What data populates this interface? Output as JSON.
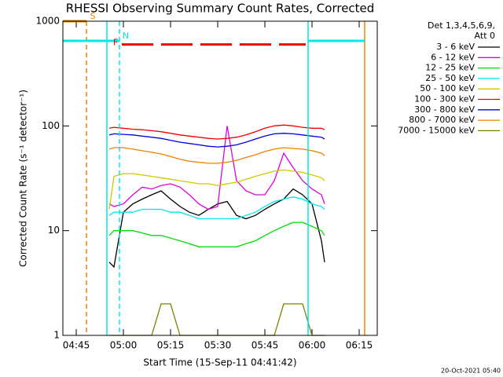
{
  "chart_data": {
    "type": "line",
    "title": "RHESSI Observing Summary Count Rates, Corrected",
    "x_label": "Start Time (15-Sep-11 04:41:42)",
    "y_label": "Corrected Count Rate (s⁻¹ detector⁻¹)",
    "legend_title": [
      "Det 1,3,4,5,6,9,",
      "Att 0"
    ],
    "footer": "20-Oct-2021 05:40",
    "log_y": true,
    "xlim": [
      280.75,
      380.75
    ],
    "xticks": [
      {
        "value": 285,
        "label": "04:45"
      },
      {
        "value": 300,
        "label": "05:00"
      },
      {
        "value": 315,
        "label": "05:15"
      },
      {
        "value": 330,
        "label": "05:30"
      },
      {
        "value": 345,
        "label": "05:45"
      },
      {
        "value": 360,
        "label": "06:00"
      },
      {
        "value": 375,
        "label": "06:15"
      }
    ],
    "ylim": [
      1,
      1000
    ],
    "yticks": [
      1,
      10,
      100,
      1000
    ],
    "x": [
      295.5,
      297,
      300,
      303,
      306,
      309,
      312,
      315,
      318,
      321,
      324,
      327,
      330,
      333,
      336,
      339,
      342,
      345,
      348,
      351,
      354,
      357,
      360,
      363,
      364
    ],
    "series": [
      {
        "name": "3 - 6 keV",
        "color": "#000000",
        "values": [
          5,
          4.5,
          15,
          18,
          20,
          22,
          24,
          20,
          17,
          15,
          14,
          16,
          18,
          19,
          14,
          13,
          14,
          16,
          18,
          20,
          25,
          22,
          18,
          8,
          5
        ]
      },
      {
        "name": "6 - 12 keV",
        "color": "#e000e0",
        "values": [
          18,
          17,
          18,
          22,
          26,
          25,
          27,
          28,
          26,
          22,
          18,
          16,
          17,
          100,
          30,
          24,
          22,
          22,
          30,
          55,
          40,
          30,
          25,
          22,
          18
        ]
      },
      {
        "name": "12 - 25 keV",
        "color": "#00e000",
        "values": [
          9,
          10,
          10,
          10,
          9.5,
          9,
          9,
          8.5,
          8,
          7.5,
          7,
          7,
          7,
          7,
          7,
          7.5,
          8,
          9,
          10,
          11,
          12,
          12,
          11,
          10,
          9
        ]
      },
      {
        "name": "25 - 50 keV",
        "color": "#00e8e8",
        "values": [
          14,
          15,
          15,
          15,
          16,
          16,
          16,
          15,
          15,
          14,
          13,
          13,
          13,
          13,
          13,
          14,
          15,
          17,
          19,
          20,
          21,
          20,
          18,
          17,
          16
        ]
      },
      {
        "name": "50 - 100 keV",
        "color": "#d0c800",
        "values": [
          16,
          33,
          35,
          35,
          34,
          33,
          32,
          31,
          30,
          29,
          28,
          28,
          27,
          28,
          29,
          31,
          33,
          35,
          37,
          38,
          37,
          36,
          34,
          32,
          30
        ]
      },
      {
        "name": "100 - 300 keV",
        "color": "#f00000",
        "values": [
          95,
          97,
          95,
          93,
          92,
          90,
          88,
          85,
          82,
          80,
          78,
          76,
          75,
          76,
          78,
          82,
          88,
          95,
          100,
          102,
          100,
          97,
          95,
          95,
          92
        ]
      },
      {
        "name": "300 - 800 keV",
        "color": "#0000e0",
        "values": [
          82,
          84,
          83,
          82,
          80,
          78,
          76,
          73,
          70,
          68,
          66,
          64,
          63,
          64,
          66,
          70,
          75,
          80,
          84,
          85,
          84,
          82,
          80,
          78,
          75
        ]
      },
      {
        "name": "800 - 7000 keV",
        "color": "#f08000",
        "values": [
          60,
          62,
          62,
          60,
          58,
          56,
          54,
          51,
          48,
          46,
          45,
          44,
          44,
          45,
          47,
          50,
          53,
          57,
          60,
          62,
          61,
          60,
          58,
          55,
          52
        ]
      },
      {
        "name": "7000 - 15000 keV",
        "color": "#808000",
        "values": [
          1,
          1,
          1,
          1,
          1,
          1,
          2,
          2,
          1,
          1,
          1,
          1,
          1,
          1,
          1,
          1,
          1,
          1,
          1,
          2,
          2,
          2,
          1,
          1,
          1
        ]
      }
    ],
    "flags": [
      {
        "label": "S",
        "color": "#f08000",
        "x0": 280.75,
        "x1": 288.25,
        "y": 1000,
        "dashed": false
      },
      {
        "label": "N",
        "color": "#00e8e8",
        "x0": 280.75,
        "x1": 298.75,
        "y": 650,
        "dashed": false
      },
      {
        "label": "F",
        "color": "#f00000",
        "x0": 299.5,
        "x1": 358,
        "y": 600,
        "dashed": true
      }
    ],
    "segments": [
      {
        "color": "#00e8e8",
        "x0": 358.75,
        "x1": 376.75,
        "y": 650
      }
    ],
    "vlines": [
      {
        "x": 288.25,
        "color": "#f08000",
        "dashed": true
      },
      {
        "x": 298.75,
        "color": "#00e8e8",
        "dashed": true
      },
      {
        "x": 294.75,
        "color": "#00e8e8",
        "dashed": false
      },
      {
        "x": 358.75,
        "color": "#00e8e8",
        "dashed": false
      },
      {
        "x": 376.75,
        "color": "#f08000",
        "dashed": false
      }
    ]
  }
}
